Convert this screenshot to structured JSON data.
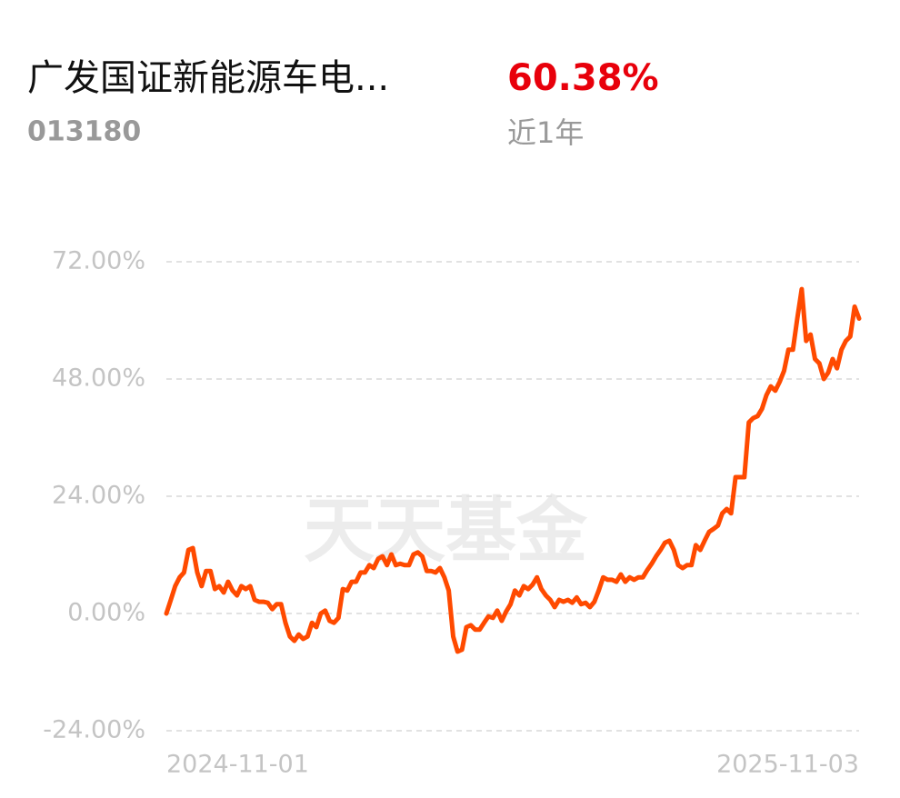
{
  "header": {
    "title": "广发国证新能源车电...",
    "code": "013180",
    "return": "60.38%",
    "period": "近1年"
  },
  "watermark": "天天基金",
  "chart_data": {
    "type": "line",
    "color": "#ff4a00",
    "grid": true,
    "categories": [
      "2024-11-01",
      null,
      null,
      null,
      null,
      null,
      null,
      null,
      null,
      null,
      null,
      null,
      null,
      null,
      null,
      null,
      null,
      null,
      null,
      null,
      null,
      null,
      null,
      null,
      null,
      null,
      null,
      null,
      null,
      null,
      null,
      null,
      null,
      null,
      null,
      null,
      null,
      null,
      null,
      null,
      null,
      null,
      null,
      null,
      null,
      null,
      null,
      null,
      null,
      null,
      null,
      null,
      null,
      null,
      null,
      null,
      null,
      null,
      null,
      null,
      null,
      null,
      null,
      null,
      null,
      null,
      null,
      null,
      null,
      null,
      null,
      null,
      null,
      null,
      null,
      null,
      null,
      null,
      null,
      null,
      null,
      null,
      null,
      null,
      null,
      null,
      null,
      null,
      null,
      null,
      null,
      null,
      null,
      null,
      null,
      null,
      null,
      null,
      null,
      null,
      null,
      null,
      null,
      null,
      null,
      null,
      null,
      null,
      null,
      null,
      null,
      null,
      null,
      null,
      null,
      null,
      null,
      null,
      null,
      null,
      null,
      null,
      null,
      null,
      null,
      null,
      null,
      null,
      null,
      null,
      null,
      null,
      null,
      null,
      null,
      null,
      null,
      null,
      null,
      null,
      null,
      null,
      null,
      null,
      null,
      null,
      null,
      null,
      null,
      null,
      null,
      null,
      null,
      null,
      null,
      null,
      null,
      "2025-11-03"
    ],
    "values": [
      0,
      2.8,
      5.6,
      7.4,
      8.4,
      13,
      13.4,
      8.4,
      5.6,
      8.7,
      8.7,
      5,
      5.6,
      4.3,
      6.5,
      4.7,
      3.7,
      5.6,
      5,
      5.6,
      2.8,
      2.4,
      2.4,
      2.2,
      0.9,
      1.9,
      1.9,
      -1.9,
      -4.7,
      -5.6,
      -4.3,
      -5.2,
      -4.7,
      -1.9,
      -2.8,
      0,
      0.6,
      -1.5,
      -1.9,
      -0.9,
      5,
      4.7,
      6.5,
      6.5,
      8.4,
      8.4,
      9.9,
      9.3,
      11.2,
      11.7,
      9.9,
      12.1,
      9.9,
      10.2,
      9.9,
      9.9,
      12.1,
      12.5,
      11.7,
      8.7,
      8.7,
      8.4,
      9.3,
      7.4,
      4.7,
      -4.7,
      -7.8,
      -7.4,
      -2.8,
      -2.4,
      -3.3,
      -3.3,
      -1.9,
      -0.6,
      -0.9,
      0.6,
      -1.5,
      0.4,
      1.9,
      4.7,
      3.7,
      5.6,
      5,
      5.9,
      7.4,
      5,
      3.7,
      2.8,
      1.3,
      2.8,
      2.4,
      2.8,
      2.2,
      3.3,
      1.9,
      2.2,
      1.3,
      2.4,
      4.7,
      7.4,
      6.9,
      6.9,
      6.5,
      8,
      6.5,
      7.4,
      6.9,
      7.4,
      7.4,
      8.9,
      10.2,
      11.7,
      13,
      14.5,
      14.9,
      13,
      9.9,
      9.3,
      9.9,
      9.9,
      14,
      13,
      14.9,
      16.7,
      17.3,
      18,
      20.5,
      21.4,
      20.5,
      27.9,
      27.9,
      27.9,
      39.1,
      40,
      40.4,
      41.9,
      44.7,
      46.5,
      45.6,
      47.4,
      49.7,
      54,
      54,
      60.5,
      66.4,
      55.8,
      57.1,
      52.1,
      51.2,
      48,
      49.3,
      52.1,
      50.2,
      54,
      55.8,
      56.7,
      62.8,
      60.38
    ],
    "ylim": [
      -24,
      72
    ],
    "yticks": [
      {
        "value": -24,
        "label": "-24.00%"
      },
      {
        "value": 0,
        "label": "0.00%"
      },
      {
        "value": 24,
        "label": "24.00%"
      },
      {
        "value": 48,
        "label": "48.00%"
      },
      {
        "value": 72,
        "label": "72.00%"
      }
    ]
  }
}
